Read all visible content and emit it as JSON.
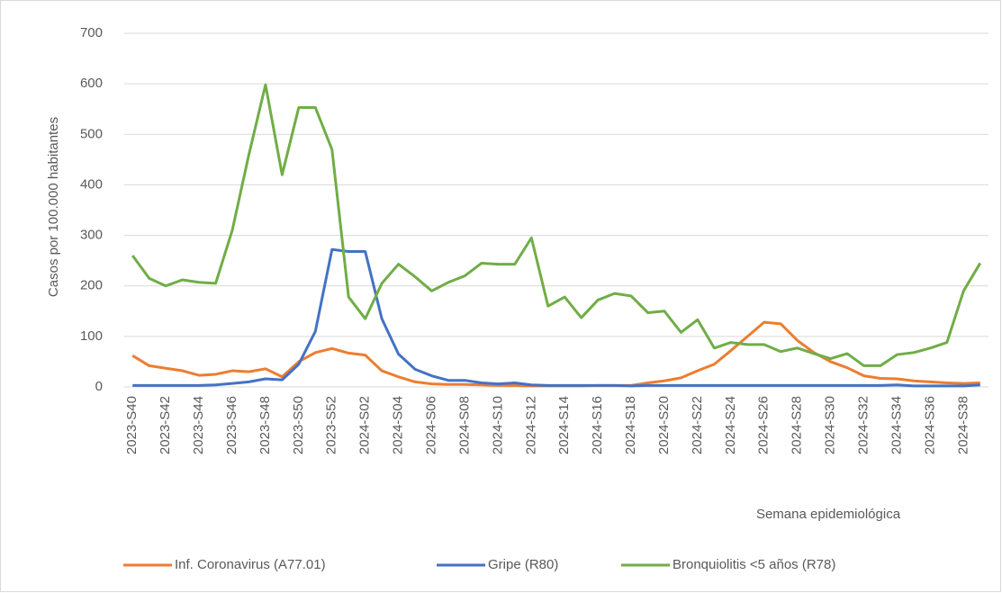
{
  "chart_data": {
    "type": "line",
    "ylabel": "Casos por 100.000 habitantes",
    "xlabel": "Semana epidemiológica",
    "categories": [
      "2023-S40",
      null,
      "2023-S42",
      null,
      "2023-S44",
      null,
      "2023-S46",
      null,
      "2023-S48",
      null,
      "2023-S50",
      null,
      "2023-S52",
      null,
      "2024-S02",
      null,
      "2024-S04",
      null,
      "2024-S06",
      null,
      "2024-S08",
      null,
      "2024-S10",
      null,
      "2024-S12",
      null,
      "2024-S14",
      null,
      "2024-S16",
      null,
      "2024-S18",
      null,
      "2024-S20",
      null,
      "2024-S22",
      null,
      "2024-S24",
      null,
      "2024-S26",
      null,
      "2024-S28",
      null,
      "2024-S30",
      null,
      "2024-S32",
      null,
      "2024-S34",
      null,
      "2024-S36",
      null,
      "2024-S38",
      null
    ],
    "series": [
      {
        "name": "Inf. Coronavirus (A77.01)",
        "color": "#ed7d31",
        "values": [
          62,
          42,
          37,
          32,
          23,
          25,
          32,
          30,
          36,
          20,
          50,
          68,
          76,
          67,
          63,
          32,
          20,
          10,
          6,
          5,
          5,
          4,
          3,
          3,
          2,
          2,
          2,
          2,
          3,
          3,
          3,
          8,
          12,
          18,
          32,
          45,
          72,
          100,
          128,
          125,
          92,
          68,
          50,
          38,
          22,
          17,
          16,
          12,
          10,
          8,
          7,
          8
        ]
      },
      {
        "name": "Gripe (R80)",
        "color": "#4472c4",
        "values": [
          3,
          3,
          3,
          3,
          3,
          4,
          7,
          10,
          16,
          14,
          45,
          110,
          272,
          268,
          268,
          135,
          65,
          35,
          22,
          13,
          13,
          8,
          6,
          8,
          4,
          3,
          3,
          3,
          3,
          3,
          2,
          3,
          3,
          3,
          3,
          3,
          3,
          3,
          3,
          3,
          3,
          3,
          3,
          3,
          3,
          3,
          4,
          2,
          2,
          2,
          2,
          4
        ]
      },
      {
        "name": "Bronquiolitis <5 años (R78)",
        "color": "#70ad47",
        "values": [
          260,
          215,
          200,
          212,
          207,
          205,
          310,
          460,
          598,
          420,
          553,
          553,
          470,
          178,
          135,
          205,
          243,
          218,
          190,
          207,
          220,
          245,
          243,
          243,
          295,
          160,
          178,
          137,
          172,
          185,
          180,
          147,
          150,
          108,
          133,
          77,
          88,
          84,
          84,
          70,
          77,
          66,
          56,
          66,
          42,
          42,
          64,
          68,
          77,
          88,
          190,
          245
        ]
      }
    ],
    "ylim": [
      0,
      700
    ],
    "yticks": [
      0,
      100,
      200,
      300,
      400,
      500,
      600,
      700
    ],
    "grid": true
  }
}
